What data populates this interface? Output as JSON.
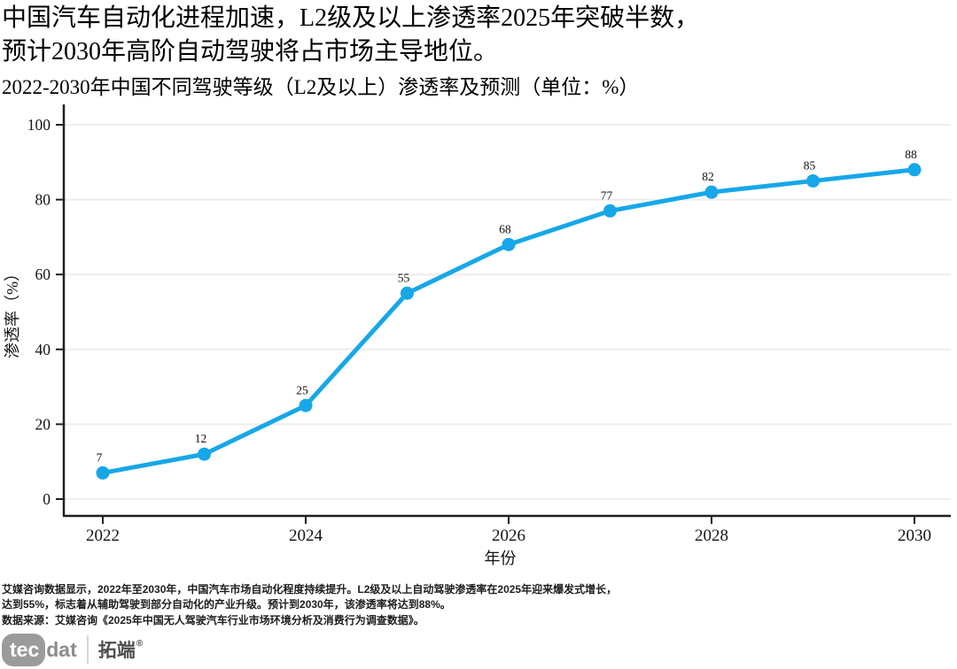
{
  "header": {
    "title_line1": "中国汽车自动化进程加速，L2级及以上渗透率2025年突破半数，",
    "title_line2": "预计2030年高阶自动驾驶将占市场主导地位。",
    "subtitle": "2022-2030年中国不同驾驶等级（L2及以上）渗透率及预测（单位：%）"
  },
  "chart_data": {
    "type": "line",
    "x": [
      2022,
      2023,
      2024,
      2025,
      2026,
      2027,
      2028,
      2029,
      2030
    ],
    "series": [
      {
        "name": "L2级及以上渗透率",
        "values": [
          7,
          12,
          25,
          55,
          68,
          77,
          82,
          85,
          88
        ]
      }
    ],
    "point_labels": [
      "7",
      "12",
      "25",
      "55",
      "68",
      "77",
      "82",
      "85",
      "88"
    ],
    "title": "2022-2030年中国不同驾驶等级（L2及以上）渗透率及预测（单位：%）",
    "xlabel": "年份",
    "ylabel": "渗透率（%）",
    "ylim": [
      0,
      100
    ],
    "yticks": [
      0,
      20,
      40,
      60,
      80,
      100
    ],
    "xticks": [
      2022,
      2024,
      2026,
      2028,
      2030
    ],
    "grid": "horizontal",
    "legend": "none",
    "line_color": "#17a7e8",
    "marker_color": "#17a7e8",
    "axis_color": "#1f1f1f",
    "grid_color": "#ededed"
  },
  "footer": {
    "note_line1": "艾媒咨询数据显示，2022年至2030年，中国汽车市场自动化程度持续提升。L2级及以上自动驾驶渗透率在2025年迎来爆发式增长，",
    "note_line2": "达到55%，标志着从辅助驾驶到部分自动化的产业升级。预计到2030年，该渗透率将达到88%。",
    "note_line3": "数据来源：艾媒咨询《2025年中国无人驾驶汽车行业市场环境分析及消费行为调查数据》。"
  },
  "logo": {
    "brand_prefix": "tec",
    "brand_suffix": "dat",
    "brand_cn": "拓端",
    "registered_mark": "®"
  }
}
